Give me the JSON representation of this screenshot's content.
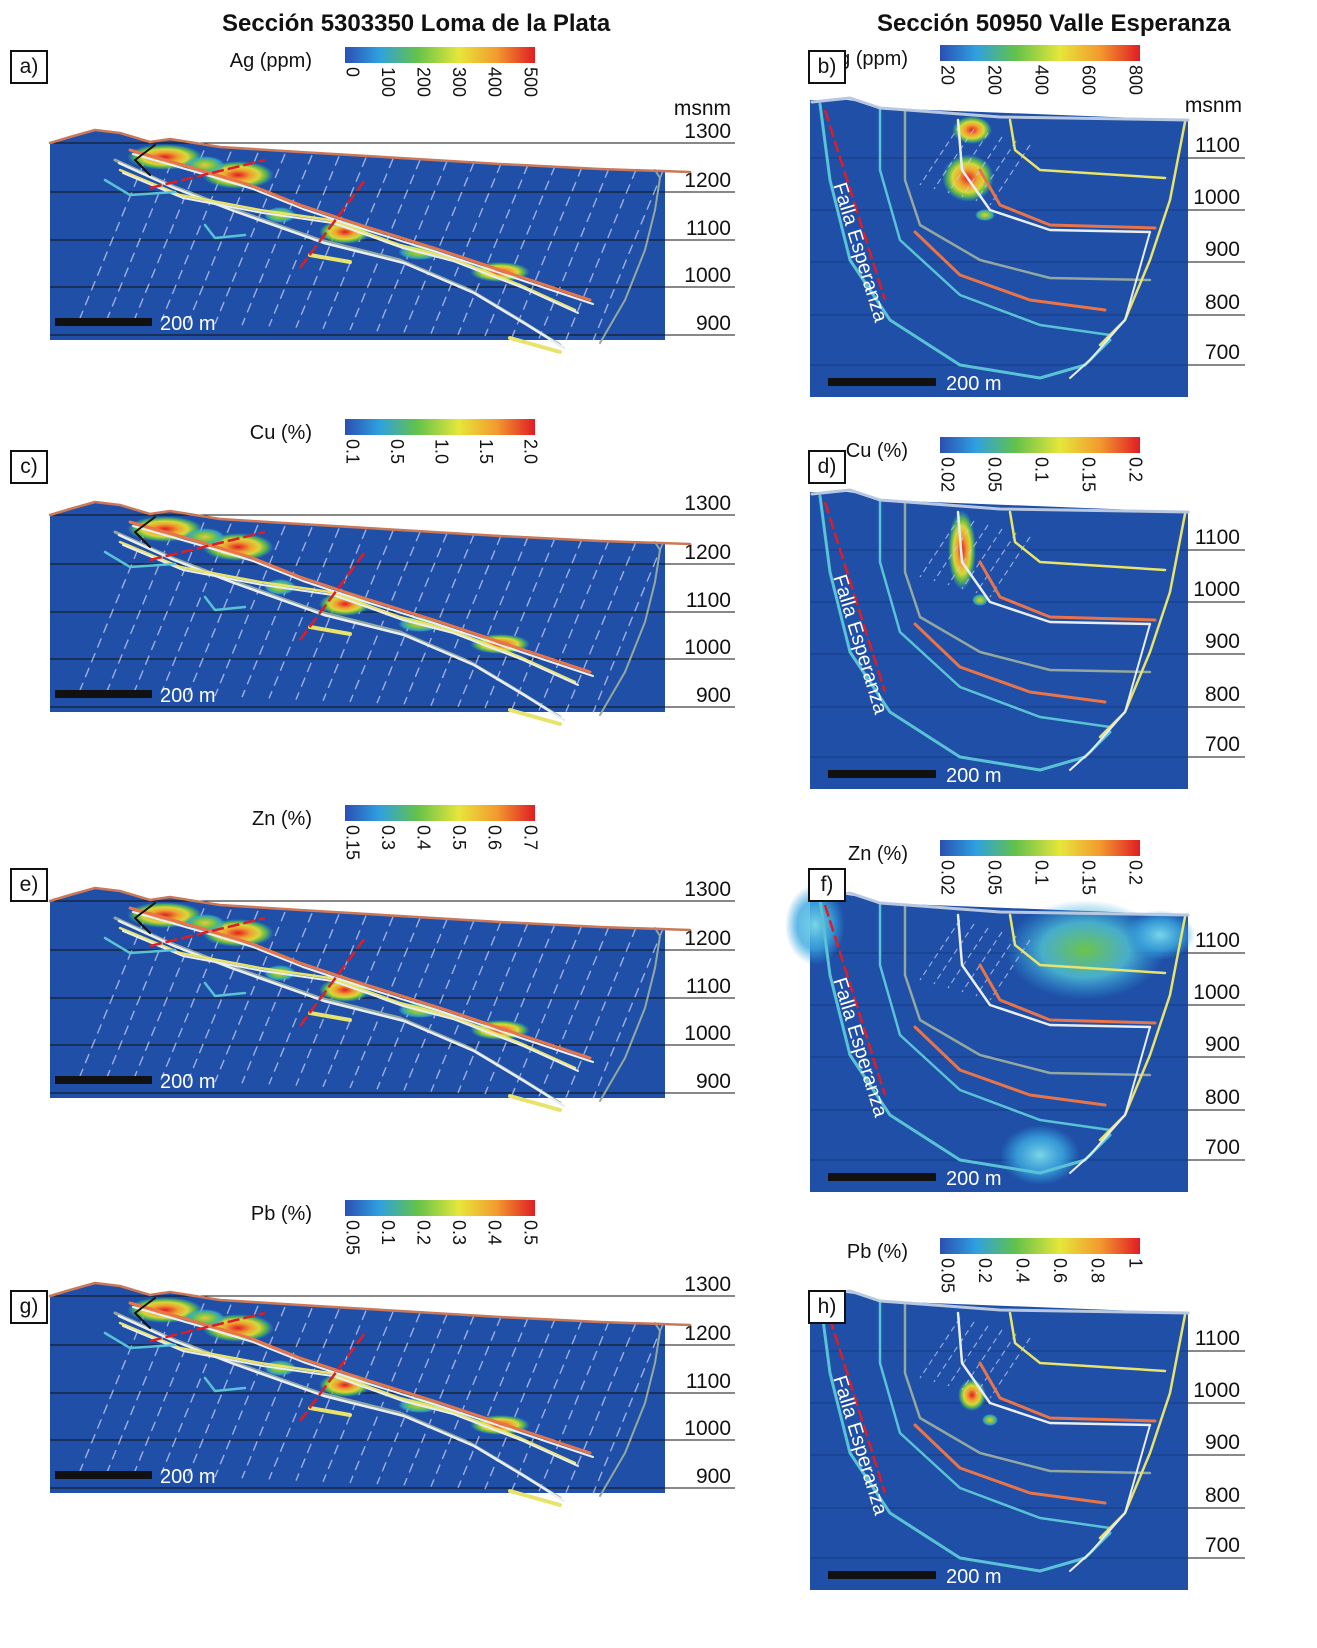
{
  "titles": {
    "left": "Sección 5303350 Loma de la Plata",
    "right": "Sección 50950 Valle Esperanza"
  },
  "fault_label": "Falla Esperanza",
  "elevation_unit": "msnm",
  "scale_label": "200 m",
  "colors": {
    "background": "#1f4fa6",
    "topography": "#c9785a",
    "fault": "#e01c24",
    "vein_white": "#e8eef2",
    "vein_yellow": "#e8e36a",
    "vein_orange": "#e8744a",
    "vein_teal": "#5ac2d6",
    "vein_gray": "#93a8a0"
  },
  "panels": [
    {
      "id": "a",
      "label": "a)",
      "section": "left",
      "element": "Ag (ppm)",
      "colorbar_ticks": [
        "0",
        "100",
        "200",
        "300",
        "400",
        "500"
      ],
      "elevation_ticks": [
        "1300",
        "1200",
        "1100",
        "1000",
        "900"
      ],
      "show_unit": true
    },
    {
      "id": "b",
      "label": "b)",
      "section": "right",
      "element": "Ag (ppm)",
      "colorbar_ticks": [
        "20",
        "200",
        "400",
        "600",
        "800"
      ],
      "elevation_ticks": [
        "1100",
        "1000",
        "900",
        "800",
        "700"
      ],
      "show_unit": true
    },
    {
      "id": "c",
      "label": "c)",
      "section": "left",
      "element": "Cu (%)",
      "colorbar_ticks": [
        "0.1",
        "0.5",
        "1.0",
        "1.5",
        "2.0"
      ],
      "elevation_ticks": [
        "1300",
        "1200",
        "1100",
        "1000",
        "900"
      ],
      "show_unit": false
    },
    {
      "id": "d",
      "label": "d)",
      "section": "right",
      "element": "Cu (%)",
      "colorbar_ticks": [
        "0.02",
        "0.05",
        "0.1",
        "0.15",
        "0.2"
      ],
      "elevation_ticks": [
        "1100",
        "1000",
        "900",
        "800",
        "700"
      ],
      "show_unit": false
    },
    {
      "id": "e",
      "label": "e)",
      "section": "left",
      "element": "Zn (%)",
      "colorbar_ticks": [
        "0.15",
        "0.3",
        "0.4",
        "0.5",
        "0.6",
        "0.7"
      ],
      "elevation_ticks": [
        "1300",
        "1200",
        "1100",
        "1000",
        "900"
      ],
      "show_unit": false
    },
    {
      "id": "f",
      "label": "f)",
      "section": "right",
      "element": "Zn (%)",
      "colorbar_ticks": [
        "0.02",
        "0.05",
        "0.1",
        "0.15",
        "0.2"
      ],
      "elevation_ticks": [
        "1100",
        "1000",
        "900",
        "800",
        "700"
      ],
      "show_unit": false
    },
    {
      "id": "g",
      "label": "g)",
      "section": "left",
      "element": "Pb (%)",
      "colorbar_ticks": [
        "0.05",
        "0.1",
        "0.2",
        "0.3",
        "0.4",
        "0.5"
      ],
      "elevation_ticks": [
        "1300",
        "1200",
        "1100",
        "1000",
        "900"
      ],
      "show_unit": false
    },
    {
      "id": "h",
      "label": "h)",
      "section": "right",
      "element": "Pb (%)",
      "colorbar_ticks": [
        "0.05",
        "0.2",
        "0.4",
        "0.6",
        "0.8",
        "1"
      ],
      "elevation_ticks": [
        "1100",
        "1000",
        "900",
        "800",
        "700"
      ],
      "show_unit": false
    }
  ]
}
